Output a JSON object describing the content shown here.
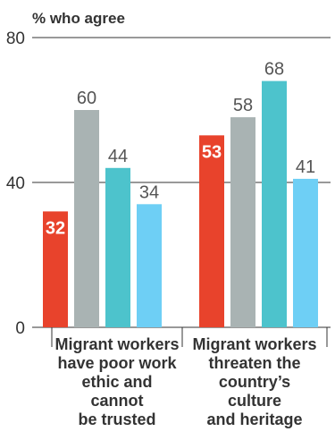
{
  "chart_data": {
    "type": "bar",
    "ylabel": "% who agree",
    "ylim": [
      0,
      80
    ],
    "yticks": [
      0,
      40,
      80
    ],
    "categories": [
      [
        "Migrant workers",
        "have poor work",
        "ethic and",
        "cannot",
        "be trusted"
      ],
      [
        "Migrant workers",
        "threaten the",
        "country’s",
        "culture",
        "and heritage"
      ]
    ],
    "series": [
      {
        "values": [
          32,
          53
        ],
        "color": "#e8432c"
      },
      {
        "values": [
          60,
          58
        ],
        "color": "#a9b3b3"
      },
      {
        "values": [
          44,
          68
        ],
        "color": "#4dc3cc"
      },
      {
        "values": [
          34,
          41
        ],
        "color": "#6ecff5"
      }
    ],
    "highlight_series": 0
  }
}
